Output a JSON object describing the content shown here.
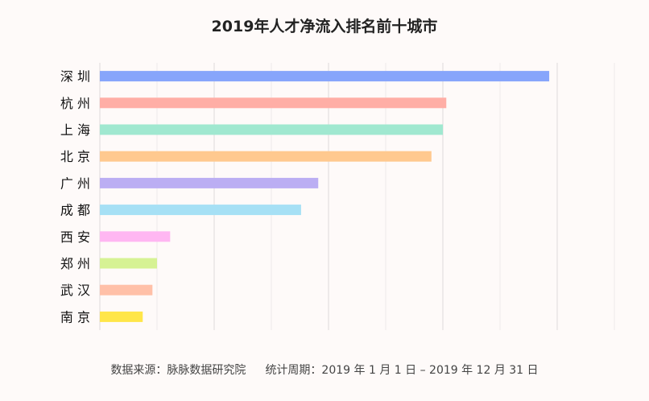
{
  "chart_data": {
    "type": "bar",
    "orientation": "horizontal",
    "title": "2019年人才净流入排名前十城市",
    "categories": [
      "深 圳",
      "杭 州",
      "上 海",
      "北 京",
      "广 州",
      "成 都",
      "西 安",
      "郑 州",
      "武 汉",
      "南 京"
    ],
    "values": [
      7.86,
      6.06,
      6.0,
      5.8,
      3.82,
      3.52,
      1.23,
      1.0,
      0.92,
      0.75
    ],
    "colors": [
      "#87a5fb",
      "#ffaea6",
      "#a0e8d0",
      "#ffc98f",
      "#bbaef3",
      "#a6e0f5",
      "#ffb7f2",
      "#d6f294",
      "#ffc0a8",
      "#ffe649"
    ],
    "xlim": [
      0,
      9
    ],
    "grid": true,
    "xlabel": "",
    "ylabel": ""
  },
  "footer": {
    "source": "数据来源：脉脉数据研究院",
    "period": "统计周期：2019 年 1 月 1 日 – 2019 年 12 月 31 日"
  }
}
